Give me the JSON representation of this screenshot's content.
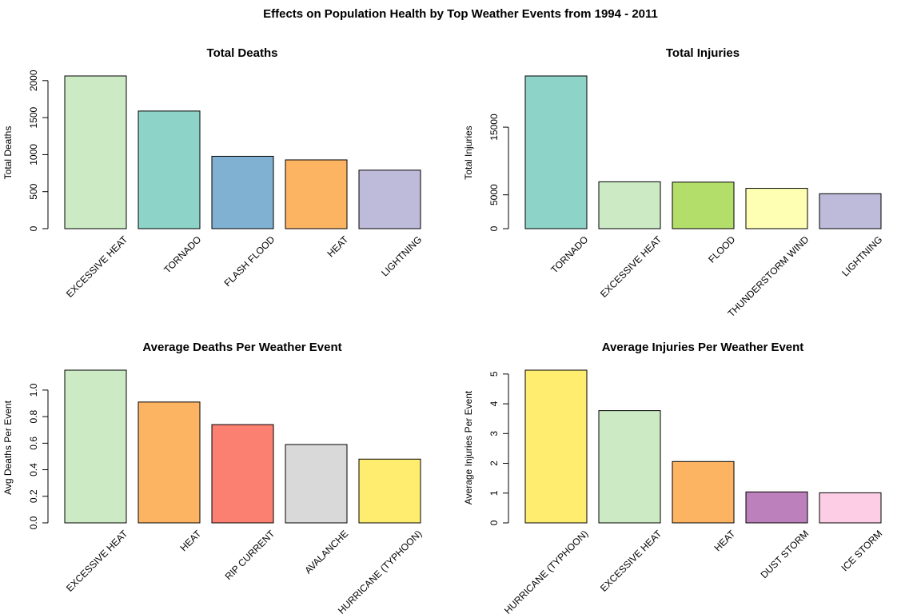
{
  "figure": {
    "title": "Effects on Population Health by Top Weather Events from 1994 - 2011"
  },
  "chart_data": [
    {
      "type": "bar",
      "title": "Total Deaths",
      "xlabel": "",
      "ylabel": "Total Deaths",
      "categories": [
        "EXCESSIVE HEAT",
        "TORNADO",
        "FLASH FLOOD",
        "HEAT",
        "LIGHTNING"
      ],
      "values": [
        2063,
        1589,
        978,
        929,
        790
      ],
      "colors": [
        "#CCEBC5",
        "#8DD3C7",
        "#80B1D3",
        "#FDB462",
        "#BEBADA"
      ],
      "yticks": [
        0,
        500,
        1000,
        1500,
        2000
      ],
      "ylim": [
        0,
        2063
      ]
    },
    {
      "type": "bar",
      "title": "Total Injuries",
      "xlabel": "",
      "ylabel": "Total Injuries",
      "categories": [
        "TORNADO",
        "EXCESSIVE HEAT",
        "FLOOD",
        "THUNDERSTORM WIND",
        "LIGHTNING"
      ],
      "values": [
        22571,
        6925,
        6874,
        5959,
        5161
      ],
      "colors": [
        "#8DD3C7",
        "#CCEBC5",
        "#B3DE69",
        "#FFFFB3",
        "#BEBADA"
      ],
      "yticks": [
        0,
        5000,
        15000
      ],
      "ylim": [
        0,
        22571
      ]
    },
    {
      "type": "bar",
      "title": "Average Deaths Per Weather Event",
      "xlabel": "",
      "ylabel": "Avg Deaths Per Event",
      "categories": [
        "EXCESSIVE HEAT",
        "HEAT",
        "RIP CURRENT",
        "AVALANCHE",
        "HURRICANE (TYPHOON)"
      ],
      "values": [
        1.15,
        0.91,
        0.74,
        0.59,
        0.48
      ],
      "colors": [
        "#CCEBC5",
        "#FDB462",
        "#FB8072",
        "#D9D9D9",
        "#FFED6F"
      ],
      "yticks": [
        0.0,
        0.2,
        0.4,
        0.6,
        0.8,
        1.0
      ],
      "ylim": [
        0,
        1.15
      ]
    },
    {
      "type": "bar",
      "title": "Average Injuries Per Weather Event",
      "xlabel": "",
      "ylabel": "Average Injuries Per Event",
      "categories": [
        "HURRICANE (TYPHOON)",
        "EXCESSIVE HEAT",
        "HEAT",
        "DUST STORM",
        "ICE STORM"
      ],
      "values": [
        5.13,
        3.77,
        2.06,
        1.04,
        1.01
      ],
      "colors": [
        "#FFED6F",
        "#CCEBC5",
        "#FDB462",
        "#BC80BD",
        "#FCCDE5"
      ],
      "yticks": [
        0,
        1,
        2,
        3,
        4,
        5
      ],
      "ylim": [
        0,
        5.13
      ]
    }
  ]
}
